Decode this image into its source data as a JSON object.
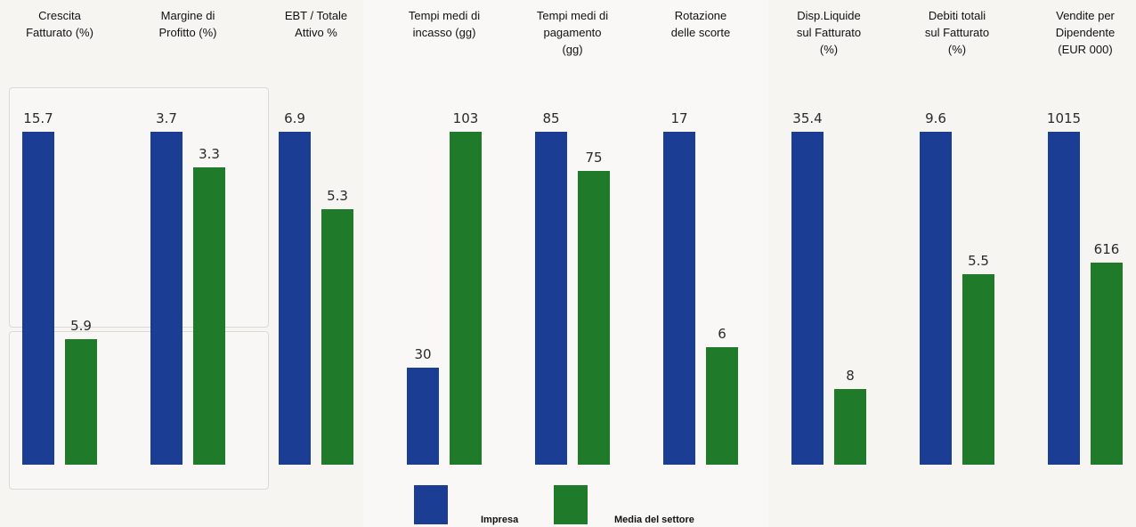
{
  "chart_data": {
    "type": "bar",
    "series": [
      {
        "name": "Impresa",
        "color": "#1c3d94"
      },
      {
        "name": "Media del settore",
        "color": "#1f7a2a"
      }
    ],
    "panels": [
      {
        "title": "Crescita\nFatturato (%)",
        "values": [
          15.7,
          5.9
        ],
        "labels": [
          "15.7",
          "5.9"
        ]
      },
      {
        "title": "Margine di\nProfitto (%)",
        "values": [
          3.7,
          3.3
        ],
        "labels": [
          "3.7",
          "3.3"
        ]
      },
      {
        "title": "EBT / Totale\nAttivo %",
        "values": [
          6.9,
          5.3
        ],
        "labels": [
          "6.9",
          "5.3"
        ]
      },
      {
        "title": "Tempi medi di\nincasso (gg)",
        "values": [
          30,
          103
        ],
        "labels": [
          "30",
          "103"
        ]
      },
      {
        "title": "Tempi medi di\npagamento\n(gg)",
        "values": [
          85,
          75
        ],
        "labels": [
          "85",
          "75"
        ]
      },
      {
        "title": "Rotazione\ndelle scorte",
        "values": [
          17,
          6
        ],
        "labels": [
          "17",
          "6"
        ]
      },
      {
        "title": "Disp.Liquide\nsul Fatturato\n(%)",
        "values": [
          35.4,
          8
        ],
        "labels": [
          "35.4",
          "8"
        ]
      },
      {
        "title": "Debiti totali\nsul Fatturato\n(%)",
        "values": [
          9.6,
          5.5
        ],
        "labels": [
          "9.6",
          "5.5"
        ]
      },
      {
        "title": "Vendite per\nDipendente\n(EUR 000)",
        "values": [
          1015,
          616
        ],
        "labels": [
          "1015",
          "616"
        ]
      }
    ],
    "legend": {
      "placement": "bottom-center"
    },
    "grid": false
  }
}
